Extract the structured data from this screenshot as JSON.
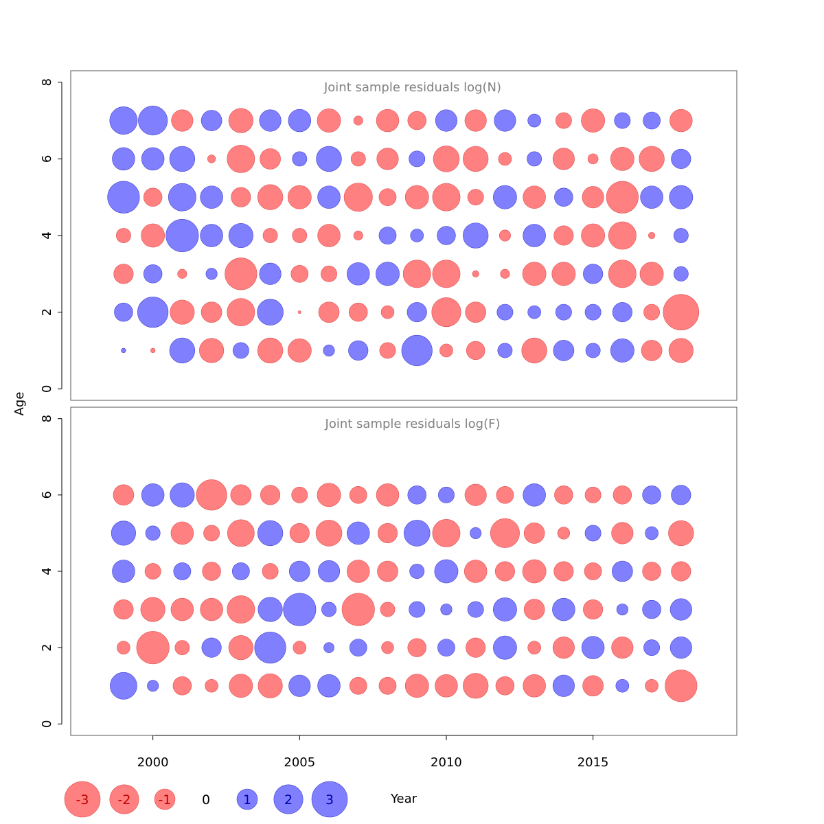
{
  "chart_data": {
    "type": "scatter",
    "xlabel": "Year",
    "ylabel": "Age",
    "xlim": [
      1997.2,
      2019.9
    ],
    "x_ticks": [
      "2000",
      "2005",
      "2010",
      "2015"
    ],
    "colors": {
      "negative": "#ff8080",
      "positive": "#8080ff",
      "neg_edge": "#e05050",
      "pos_edge": "#4040d0"
    },
    "legend": {
      "labels": [
        "-3",
        "-2",
        "-1",
        "0",
        "1",
        "2",
        "3"
      ],
      "values": [
        -3,
        -2,
        -1,
        0,
        1,
        2,
        3
      ],
      "text_colors": [
        "#c00000",
        "#c00000",
        "#c00000",
        "#000000",
        "#0000aa",
        "#0000aa",
        "#0000aa"
      ]
    },
    "panels": [
      {
        "title": "Joint sample residuals log(N)",
        "ylim": [
          -0.3,
          8.3
        ],
        "y_ticks": [
          "0",
          "2",
          "4",
          "6",
          "8"
        ],
        "years": [
          1999,
          2000,
          2001,
          2002,
          2003,
          2004,
          2005,
          2006,
          2007,
          2008,
          2009,
          2010,
          2011,
          2012,
          2013,
          2014,
          2015,
          2016,
          2017,
          2018
        ],
        "ages": [
          1,
          2,
          3,
          4,
          5,
          6,
          7
        ],
        "residuals": [
          [
            0.05,
            -0.05,
            1.5,
            -1.4,
            0.6,
            -1.5,
            -1.3,
            0.3,
            0.9,
            -0.6,
            2.2,
            -0.4,
            -0.8,
            0.5,
            -1.5,
            1.0,
            0.5,
            1.3,
            -1.0,
            -1.4
          ],
          [
            0.8,
            2.2,
            -1.4,
            -1.0,
            -1.8,
            1.6,
            -0.02,
            -1.0,
            -0.8,
            -0.4,
            0.9,
            -2.0,
            -1.0,
            0.6,
            0.4,
            0.6,
            0.6,
            0.9,
            -0.6,
            -3.0
          ],
          [
            -0.9,
            0.8,
            -0.2,
            0.3,
            -2.4,
            1.1,
            -0.7,
            -0.6,
            1.2,
            1.3,
            -1.8,
            -1.8,
            -0.1,
            -0.2,
            -1.3,
            -1.3,
            0.9,
            -1.8,
            -1.3,
            0.5
          ],
          [
            -0.5,
            -1.3,
            2.5,
            1.2,
            1.4,
            -0.5,
            -0.5,
            -1.2,
            -0.2,
            0.7,
            0.4,
            0.8,
            1.5,
            -0.3,
            1.2,
            -0.9,
            -1.3,
            -1.8,
            -0.1,
            0.5
          ],
          [
            2.4,
            -0.8,
            1.8,
            1.2,
            -0.9,
            -1.5,
            -1.3,
            1.2,
            -1.9,
            -0.7,
            -1.3,
            -1.8,
            -0.6,
            1.3,
            -1.2,
            0.8,
            -1.1,
            -2.4,
            1.2,
            1.3
          ],
          [
            1.2,
            1.2,
            1.5,
            -0.15,
            -1.8,
            -1.0,
            0.5,
            1.5,
            -0.5,
            -1.1,
            0.6,
            -1.6,
            -1.5,
            -0.4,
            0.5,
            -1.1,
            -0.25,
            -1.3,
            -1.5,
            0.9
          ],
          [
            1.8,
            2.0,
            -1.1,
            1.0,
            -1.4,
            1.1,
            1.2,
            -1.3,
            -0.2,
            -1.2,
            -0.8,
            1.1,
            -1.1,
            1.1,
            0.4,
            -0.6,
            -1.3,
            0.6,
            0.7,
            -1.2
          ]
        ]
      },
      {
        "title": "Joint sample residuals log(F)",
        "ylim": [
          -0.3,
          8.3
        ],
        "y_ticks": [
          "0",
          "2",
          "4",
          "6",
          "8"
        ],
        "years": [
          1999,
          2000,
          2001,
          2002,
          2003,
          2004,
          2005,
          2006,
          2007,
          2008,
          2009,
          2010,
          2011,
          2012,
          2013,
          2014,
          2015,
          2016,
          2017,
          2018
        ],
        "ages": [
          1,
          2,
          3,
          4,
          5,
          6
        ],
        "residuals": [
          [
            1.7,
            0.3,
            -0.8,
            -0.4,
            -1.3,
            -1.4,
            1.1,
            1.2,
            -0.7,
            -0.7,
            -1.3,
            -1.2,
            -1.5,
            -0.8,
            -1.2,
            1.1,
            -1.0,
            0.4,
            -0.4,
            -2.4
          ],
          [
            -0.4,
            -2.5,
            -0.5,
            0.9,
            -1.4,
            2.3,
            -0.4,
            0.25,
            0.7,
            -0.35,
            -0.8,
            0.7,
            -0.9,
            1.3,
            -0.4,
            -1.1,
            1.2,
            -1.1,
            0.6,
            1.1
          ],
          [
            -0.9,
            -1.4,
            -1.2,
            -1.2,
            -1.8,
            1.4,
            2.5,
            0.5,
            -2.5,
            -0.5,
            0.6,
            0.3,
            0.6,
            1.3,
            -1.0,
            1.2,
            -0.9,
            0.3,
            0.8,
            1.1
          ],
          [
            1.2,
            -0.6,
            0.7,
            -0.8,
            0.7,
            -0.6,
            1.0,
            1.1,
            -1.2,
            -1.0,
            0.5,
            1.3,
            -1.2,
            -0.9,
            -1.3,
            -0.9,
            -0.7,
            1.0,
            -0.8,
            -0.9
          ],
          [
            1.4,
            0.5,
            -1.2,
            -0.6,
            -1.7,
            1.5,
            -0.9,
            -1.6,
            1.2,
            -0.9,
            1.6,
            -1.8,
            0.3,
            -2.0,
            -1.0,
            -0.35,
            0.6,
            -1.1,
            0.4,
            -1.5
          ],
          [
            -1.0,
            1.2,
            1.4,
            -2.2,
            -1.0,
            -0.9,
            -0.6,
            -1.3,
            -0.7,
            -1.2,
            0.8,
            0.6,
            -1.1,
            -0.7,
            1.2,
            -0.8,
            -0.6,
            -0.8,
            0.8,
            0.9
          ]
        ]
      }
    ]
  }
}
